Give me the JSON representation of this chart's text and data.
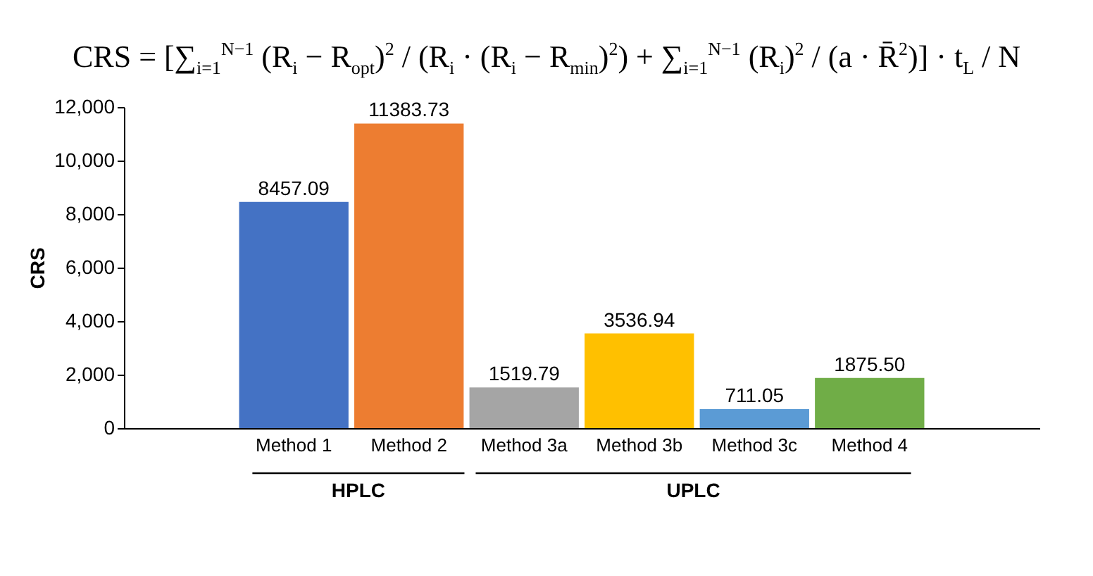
{
  "chart_data": {
    "type": "bar",
    "title": "CRS = [∑$_{i=1}$$^{N−1}$ (R$_{i}$ − R$_{opt}$)$^{2}$ / (R$_{i}$ · (R$_{i}$ − R$_{min}$)$^{2}$) + ∑$_{i=1}$$^{N−1}$ (R$_{i}$)$^{2}$ / (a · R̄$^{2}$)] · t$_{L}$ / N",
    "ylabel": "CRS",
    "categories": [
      "Method 1",
      "Method 2",
      "Method 3a",
      "Method 3b",
      "Method 3c",
      "Method 4"
    ],
    "values": [
      8457.09,
      11383.73,
      1519.79,
      3536.94,
      711.05,
      1875.5
    ],
    "value_labels": [
      "8457.09",
      "11383.73",
      "1519.79",
      "3536.94",
      "711.05",
      "1875.50"
    ],
    "colors": [
      "#4472c4",
      "#ed7d31",
      "#a5a5a5",
      "#ffc000",
      "#5b9bd5",
      "#70ad47"
    ],
    "ylim": [
      0,
      12000
    ],
    "yticks": [
      {
        "value": 0,
        "label": "0"
      },
      {
        "value": 2000,
        "label": "2,000"
      },
      {
        "value": 4000,
        "label": "4,000"
      },
      {
        "value": 6000,
        "label": "6,000"
      },
      {
        "value": 8000,
        "label": "8,000"
      },
      {
        "value": 10000,
        "label": "10,000"
      },
      {
        "value": 12000,
        "label": "12,000"
      }
    ],
    "annotations": [
      "HPLC",
      "UPLC"
    ],
    "grid": false,
    "legend": false
  }
}
